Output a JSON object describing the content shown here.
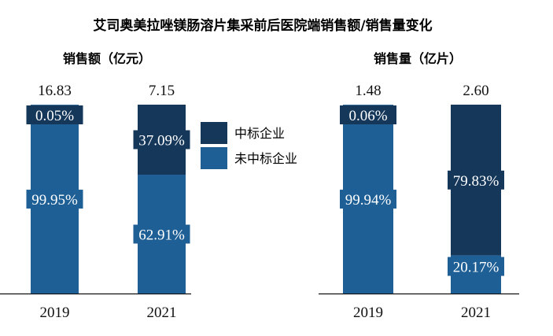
{
  "chart_data": {
    "type": "bar",
    "title": "艾司奥美拉唑镁肠溶片集采前后医院端销售额/销售量变化",
    "legend": [
      "中标企业",
      "未中标企业"
    ],
    "legend_placement": "center",
    "colors": {
      "winning": "#15375a",
      "non_winning": "#1e5f96"
    },
    "panels": [
      {
        "subtitle": "销售额（亿元）",
        "categories": [
          "2019",
          "2021"
        ],
        "totals": [
          "16.83",
          "7.15"
        ],
        "total_values": [
          16.83,
          7.15
        ],
        "series": [
          {
            "name": "中标企业",
            "values": [
              0.05,
              37.09
            ],
            "labels": [
              "0.05%",
              "37.09%"
            ]
          },
          {
            "name": "未中标企业",
            "values": [
              99.95,
              62.91
            ],
            "labels": [
              "99.95%",
              "62.91%"
            ]
          }
        ]
      },
      {
        "subtitle": "销售量（亿片）",
        "categories": [
          "2019",
          "2021"
        ],
        "totals": [
          "1.48",
          "2.60"
        ],
        "total_values": [
          1.48,
          2.6
        ],
        "series": [
          {
            "name": "中标企业",
            "values": [
              0.06,
              79.83
            ],
            "labels": [
              "0.06%",
              "79.83%"
            ]
          },
          {
            "name": "未中标企业",
            "values": [
              99.94,
              20.17
            ],
            "labels": [
              "99.94%",
              "20.17%"
            ]
          }
        ]
      }
    ]
  }
}
